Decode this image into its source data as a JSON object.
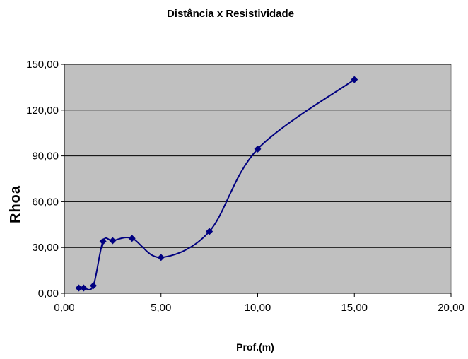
{
  "chart_data": {
    "type": "scatter",
    "title": "Distância x Resistividade",
    "xlabel": "Prof.(m)",
    "ylabel": "Rhoa",
    "xlim": [
      0,
      20
    ],
    "ylim": [
      0,
      150
    ],
    "x_ticks": [
      "0,00",
      "5,00",
      "10,00",
      "15,00",
      "20,00"
    ],
    "y_ticks": [
      "0,00",
      "30,00",
      "60,00",
      "90,00",
      "120,00",
      "150,00"
    ],
    "grid": "horizontal",
    "smoothed_line": true,
    "marker": "diamond",
    "legend": "none",
    "colors": {
      "plot_background": "#c0c0c0",
      "series": "#000080",
      "grid": "#000000"
    },
    "series": [
      {
        "x": [
          0.75,
          1.0,
          1.5,
          2.0,
          2.5,
          3.5,
          5.0,
          7.5,
          10.0,
          15.0
        ],
        "y": [
          3.5,
          3.5,
          5.0,
          34.0,
          34.5,
          36.0,
          23.5,
          40.5,
          94.5,
          140.0
        ]
      }
    ]
  }
}
